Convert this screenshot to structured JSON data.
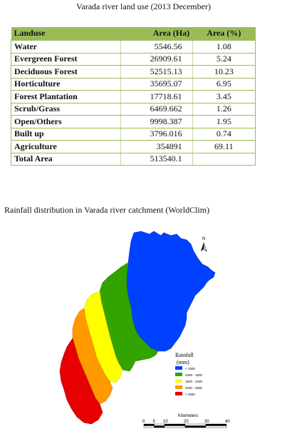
{
  "caption1": "Varada river land use (2013 December)",
  "caption2": "Rainfall distribution in Varada river catchment (WorldClim)",
  "table": {
    "headers": [
      "Landuse",
      "Area (Ha)",
      "Area (%)"
    ],
    "rows": [
      {
        "name": "Water",
        "area": "5546.56",
        "pct": "1.08"
      },
      {
        "name": "Evergreen Forest",
        "area": "26909.61",
        "pct": "5.24"
      },
      {
        "name": "Deciduous Forest",
        "area": "52515.13",
        "pct": "10.23"
      },
      {
        "name": "Horticulture",
        "area": "35695.07",
        "pct": "6.95"
      },
      {
        "name": "Forest Plantation",
        "area": "17718.61",
        "pct": "3.45"
      },
      {
        "name": "Scrub/Grass",
        "area": "6469.662",
        "pct": "1.26"
      },
      {
        "name": "Open/Others",
        "area": "9998.387",
        "pct": "1.95"
      },
      {
        "name": "Built up",
        "area": "3796.016",
        "pct": "0.74"
      },
      {
        "name": "Agriculture",
        "area": "354891",
        "pct": "69.11"
      },
      {
        "name": "Total Area",
        "area": "513540.1",
        "pct": ""
      }
    ]
  },
  "map": {
    "north": "N",
    "legend_title_1": "Rainfall",
    "legend_title_2": "(mm)",
    "legend": [
      {
        "label": "< 1000",
        "color": "#0040ff"
      },
      {
        "label": "1000 - 1500",
        "color": "#33a300"
      },
      {
        "label": "1500 - 2000",
        "color": "#ffff00"
      },
      {
        "label": "2000 - 2500",
        "color": "#ff9900"
      },
      {
        "label": "> 2500",
        "color": "#e60000"
      }
    ],
    "scale_title": "Kilometers",
    "scale_ticks": [
      "0",
      "5",
      "10",
      "20",
      "30",
      "40"
    ]
  }
}
